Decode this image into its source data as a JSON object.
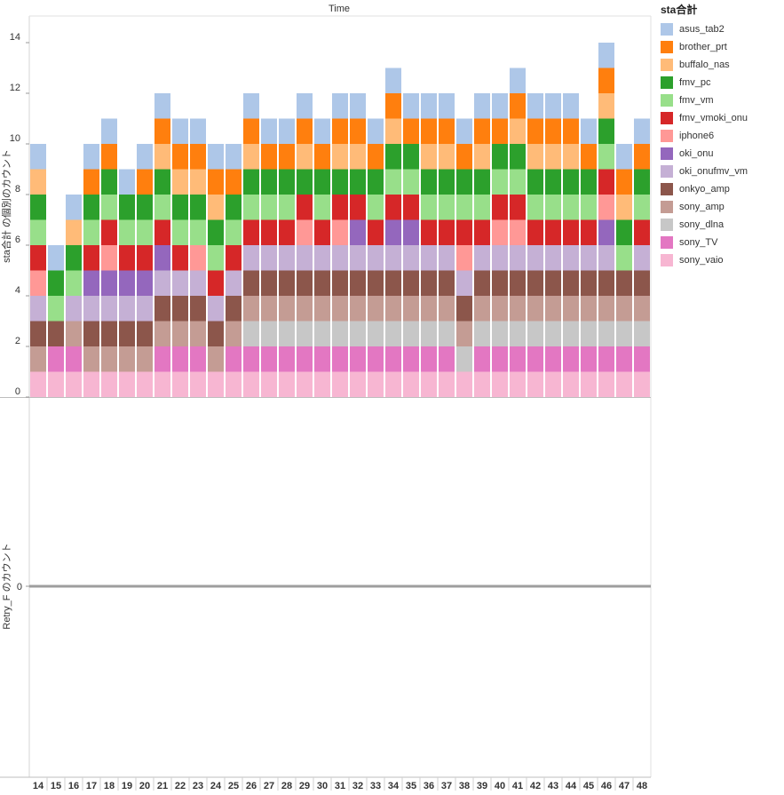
{
  "chart_data": {
    "type": "bar",
    "stacked": true,
    "column_header": "Time",
    "legend_title": "sta合計",
    "legend_position": "right",
    "categories": [
      "14",
      "15",
      "16",
      "17",
      "18",
      "19",
      "20",
      "21",
      "22",
      "23",
      "24",
      "25",
      "26",
      "27",
      "28",
      "29",
      "30",
      "31",
      "32",
      "33",
      "34",
      "35",
      "36",
      "37",
      "38",
      "39",
      "40",
      "41",
      "42",
      "43",
      "44",
      "45",
      "46",
      "47",
      "48"
    ],
    "top_panel": {
      "ylabel": "sta合計 の個別のカウント",
      "ylim": [
        0,
        15.5
      ],
      "yticks": [
        0,
        2,
        4,
        6,
        8,
        10,
        12,
        14
      ],
      "grid": false,
      "stacks": [
        [
          "sony_vaio",
          "sony_amp",
          "onkyo_amp",
          "oki_onufmv_vm",
          "iphone6",
          "fmv_vmoki_onu",
          "fmv_vm",
          "fmv_pc",
          "buffalo_nas",
          "asus_tab2"
        ],
        [
          "sony_vaio",
          "sony_TV",
          "onkyo_amp",
          "fmv_vm",
          "fmv_pc",
          "asus_tab2"
        ],
        [
          "sony_vaio",
          "sony_TV",
          "sony_amp",
          "oki_onufmv_vm",
          "fmv_vm",
          "fmv_pc",
          "buffalo_nas",
          "asus_tab2"
        ],
        [
          "sony_vaio",
          "sony_amp",
          "onkyo_amp",
          "oki_onufmv_vm",
          "oki_onu",
          "fmv_vmoki_onu",
          "fmv_vm",
          "fmv_pc",
          "brother_prt",
          "asus_tab2"
        ],
        [
          "sony_vaio",
          "sony_amp",
          "onkyo_amp",
          "oki_onufmv_vm",
          "oki_onu",
          "iphone6",
          "fmv_vmoki_onu",
          "fmv_vm",
          "fmv_pc",
          "brother_prt",
          "asus_tab2"
        ],
        [
          "sony_vaio",
          "sony_amp",
          "onkyo_amp",
          "oki_onufmv_vm",
          "oki_onu",
          "fmv_vmoki_onu",
          "fmv_vm",
          "fmv_pc",
          "asus_tab2"
        ],
        [
          "sony_vaio",
          "sony_amp",
          "onkyo_amp",
          "oki_onufmv_vm",
          "oki_onu",
          "fmv_vmoki_onu",
          "fmv_vm",
          "fmv_pc",
          "brother_prt",
          "asus_tab2"
        ],
        [
          "sony_vaio",
          "sony_TV",
          "sony_amp",
          "onkyo_amp",
          "oki_onufmv_vm",
          "oki_onu",
          "fmv_vmoki_onu",
          "fmv_vm",
          "fmv_pc",
          "buffalo_nas",
          "brother_prt",
          "asus_tab2"
        ],
        [
          "sony_vaio",
          "sony_TV",
          "sony_amp",
          "onkyo_amp",
          "oki_onufmv_vm",
          "fmv_vmoki_onu",
          "fmv_vm",
          "fmv_pc",
          "buffalo_nas",
          "brother_prt",
          "asus_tab2"
        ],
        [
          "sony_vaio",
          "sony_TV",
          "sony_amp",
          "onkyo_amp",
          "oki_onufmv_vm",
          "iphone6",
          "fmv_vm",
          "fmv_pc",
          "buffalo_nas",
          "brother_prt",
          "asus_tab2"
        ],
        [
          "sony_vaio",
          "sony_amp",
          "onkyo_amp",
          "oki_onufmv_vm",
          "fmv_vmoki_onu",
          "fmv_vm",
          "fmv_pc",
          "buffalo_nas",
          "brother_prt",
          "asus_tab2"
        ],
        [
          "sony_vaio",
          "sony_TV",
          "sony_amp",
          "onkyo_amp",
          "oki_onufmv_vm",
          "fmv_vmoki_onu",
          "fmv_vm",
          "fmv_pc",
          "brother_prt",
          "asus_tab2"
        ],
        [
          "sony_vaio",
          "sony_TV",
          "sony_dlna",
          "sony_amp",
          "onkyo_amp",
          "oki_onufmv_vm",
          "fmv_vmoki_onu",
          "fmv_vm",
          "fmv_pc",
          "buffalo_nas",
          "brother_prt",
          "asus_tab2"
        ],
        [
          "sony_vaio",
          "sony_TV",
          "sony_dlna",
          "sony_amp",
          "onkyo_amp",
          "oki_onufmv_vm",
          "fmv_vmoki_onu",
          "fmv_vm",
          "fmv_pc",
          "brother_prt",
          "asus_tab2"
        ],
        [
          "sony_vaio",
          "sony_TV",
          "sony_dlna",
          "sony_amp",
          "onkyo_amp",
          "oki_onufmv_vm",
          "fmv_vmoki_onu",
          "fmv_vm",
          "fmv_pc",
          "brother_prt",
          "asus_tab2"
        ],
        [
          "sony_vaio",
          "sony_TV",
          "sony_dlna",
          "sony_amp",
          "onkyo_amp",
          "oki_onufmv_vm",
          "iphone6",
          "fmv_vmoki_onu",
          "fmv_pc",
          "buffalo_nas",
          "brother_prt",
          "asus_tab2"
        ],
        [
          "sony_vaio",
          "sony_TV",
          "sony_dlna",
          "sony_amp",
          "onkyo_amp",
          "oki_onufmv_vm",
          "fmv_vmoki_onu",
          "fmv_vm",
          "fmv_pc",
          "brother_prt",
          "asus_tab2"
        ],
        [
          "sony_vaio",
          "sony_TV",
          "sony_dlna",
          "sony_amp",
          "onkyo_amp",
          "oki_onufmv_vm",
          "iphone6",
          "fmv_vmoki_onu",
          "fmv_pc",
          "buffalo_nas",
          "brother_prt",
          "asus_tab2"
        ],
        [
          "sony_vaio",
          "sony_TV",
          "sony_dlna",
          "sony_amp",
          "onkyo_amp",
          "oki_onufmv_vm",
          "oki_onu",
          "fmv_vmoki_onu",
          "fmv_pc",
          "buffalo_nas",
          "brother_prt",
          "asus_tab2"
        ],
        [
          "sony_vaio",
          "sony_TV",
          "sony_dlna",
          "sony_amp",
          "onkyo_amp",
          "oki_onufmv_vm",
          "fmv_vmoki_onu",
          "fmv_vm",
          "fmv_pc",
          "brother_prt",
          "asus_tab2"
        ],
        [
          "sony_vaio",
          "sony_TV",
          "sony_dlna",
          "sony_amp",
          "onkyo_amp",
          "oki_onufmv_vm",
          "oki_onu",
          "fmv_vmoki_onu",
          "fmv_vm",
          "fmv_pc",
          "buffalo_nas",
          "brother_prt",
          "asus_tab2"
        ],
        [
          "sony_vaio",
          "sony_TV",
          "sony_dlna",
          "sony_amp",
          "onkyo_amp",
          "oki_onufmv_vm",
          "oki_onu",
          "fmv_vmoki_onu",
          "fmv_vm",
          "fmv_pc",
          "brother_prt",
          "asus_tab2"
        ],
        [
          "sony_vaio",
          "sony_TV",
          "sony_dlna",
          "sony_amp",
          "onkyo_amp",
          "oki_onufmv_vm",
          "fmv_vmoki_onu",
          "fmv_vm",
          "fmv_pc",
          "buffalo_nas",
          "brother_prt",
          "asus_tab2"
        ],
        [
          "sony_vaio",
          "sony_TV",
          "sony_dlna",
          "sony_amp",
          "onkyo_amp",
          "oki_onufmv_vm",
          "fmv_vmoki_onu",
          "fmv_vm",
          "fmv_pc",
          "buffalo_nas",
          "brother_prt",
          "asus_tab2"
        ],
        [
          "sony_vaio",
          "sony_dlna",
          "sony_amp",
          "onkyo_amp",
          "oki_onufmv_vm",
          "iphone6",
          "fmv_vmoki_onu",
          "fmv_vm",
          "fmv_pc",
          "brother_prt",
          "asus_tab2"
        ],
        [
          "sony_vaio",
          "sony_TV",
          "sony_dlna",
          "sony_amp",
          "onkyo_amp",
          "oki_onufmv_vm",
          "fmv_vmoki_onu",
          "fmv_vm",
          "fmv_pc",
          "buffalo_nas",
          "brother_prt",
          "asus_tab2"
        ],
        [
          "sony_vaio",
          "sony_TV",
          "sony_dlna",
          "sony_amp",
          "onkyo_amp",
          "oki_onufmv_vm",
          "iphone6",
          "fmv_vmoki_onu",
          "fmv_vm",
          "fmv_pc",
          "brother_prt",
          "asus_tab2"
        ],
        [
          "sony_vaio",
          "sony_TV",
          "sony_dlna",
          "sony_amp",
          "onkyo_amp",
          "oki_onufmv_vm",
          "iphone6",
          "fmv_vmoki_onu",
          "fmv_vm",
          "fmv_pc",
          "buffalo_nas",
          "brother_prt",
          "asus_tab2"
        ],
        [
          "sony_vaio",
          "sony_TV",
          "sony_dlna",
          "sony_amp",
          "onkyo_amp",
          "oki_onufmv_vm",
          "fmv_vmoki_onu",
          "fmv_vm",
          "fmv_pc",
          "buffalo_nas",
          "brother_prt",
          "asus_tab2"
        ],
        [
          "sony_vaio",
          "sony_TV",
          "sony_dlna",
          "sony_amp",
          "onkyo_amp",
          "oki_onufmv_vm",
          "fmv_vmoki_onu",
          "fmv_vm",
          "fmv_pc",
          "buffalo_nas",
          "brother_prt",
          "asus_tab2"
        ],
        [
          "sony_vaio",
          "sony_TV",
          "sony_dlna",
          "sony_amp",
          "onkyo_amp",
          "oki_onufmv_vm",
          "fmv_vmoki_onu",
          "fmv_vm",
          "fmv_pc",
          "buffalo_nas",
          "brother_prt",
          "asus_tab2"
        ],
        [
          "sony_vaio",
          "sony_TV",
          "sony_dlna",
          "sony_amp",
          "onkyo_amp",
          "oki_onufmv_vm",
          "fmv_vmoki_onu",
          "fmv_vm",
          "fmv_pc",
          "brother_prt",
          "asus_tab2"
        ],
        [
          "sony_vaio",
          "sony_TV",
          "sony_dlna",
          "sony_amp",
          "onkyo_amp",
          "oki_onufmv_vm",
          "oki_onu",
          "iphone6",
          "fmv_vmoki_onu",
          "fmv_vm",
          "fmv_pc",
          "buffalo_nas",
          "brother_prt",
          "asus_tab2"
        ],
        [
          "sony_vaio",
          "sony_TV",
          "sony_dlna",
          "sony_amp",
          "onkyo_amp",
          "fmv_vm",
          "fmv_pc",
          "buffalo_nas",
          "brother_prt",
          "asus_tab2"
        ],
        [
          "sony_vaio",
          "sony_TV",
          "sony_dlna",
          "sony_amp",
          "onkyo_amp",
          "oki_onufmv_vm",
          "fmv_vmoki_onu",
          "fmv_vm",
          "fmv_pc",
          "brother_prt",
          "asus_tab2"
        ]
      ]
    },
    "bottom_panel": {
      "ylabel": "Retry_F のカウント",
      "yticks": [
        0
      ],
      "values": [
        0,
        0,
        0,
        0,
        0,
        0,
        0,
        0,
        0,
        0,
        0,
        0,
        0,
        0,
        0,
        0,
        0,
        0,
        0,
        0,
        0,
        0,
        0,
        0,
        0,
        0,
        0,
        0,
        0,
        0,
        0,
        0,
        0,
        0,
        0
      ]
    },
    "series": [
      {
        "name": "asus_tab2",
        "color": "#aec7e8"
      },
      {
        "name": "brother_prt",
        "color": "#ff7f0e"
      },
      {
        "name": "buffalo_nas",
        "color": "#ffbb78"
      },
      {
        "name": "fmv_pc",
        "color": "#2ca02c"
      },
      {
        "name": "fmv_vm",
        "color": "#98df8a"
      },
      {
        "name": "fmv_vmoki_onu",
        "color": "#d62728"
      },
      {
        "name": "iphone6",
        "color": "#ff9896"
      },
      {
        "name": "oki_onu",
        "color": "#9467bd"
      },
      {
        "name": "oki_onufmv_vm",
        "color": "#c5b0d5"
      },
      {
        "name": "onkyo_amp",
        "color": "#8c564b"
      },
      {
        "name": "sony_amp",
        "color": "#c49c94"
      },
      {
        "name": "sony_dlna",
        "color": "#c7c7c7"
      },
      {
        "name": "sony_TV",
        "color": "#e377c2"
      },
      {
        "name": "sony_vaio",
        "color": "#f7b6d2"
      }
    ]
  }
}
